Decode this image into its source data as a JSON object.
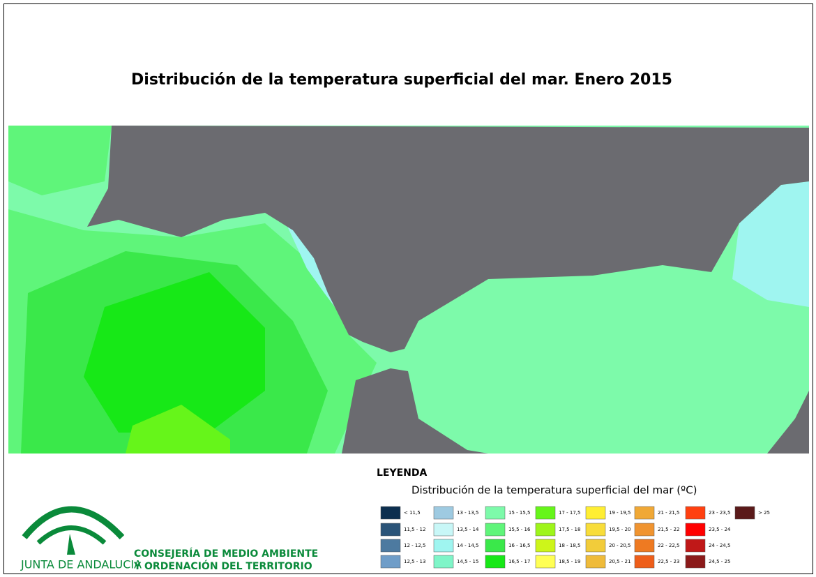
{
  "title": "Distribución de la temperatura superficial del mar. Enero 2015",
  "legend": {
    "heading": "LEYENDA",
    "subtitle": "Distribución de la temperatura superficial del mar  (ºC)",
    "items": [
      {
        "label": "< 11,5",
        "color": "#0d2f4f"
      },
      {
        "label": "11,5 - 12",
        "color": "#2b5478"
      },
      {
        "label": "12 - 12,5",
        "color": "#4d7aa0"
      },
      {
        "label": "12,5 - 13",
        "color": "#6f9dc8"
      },
      {
        "label": "13 - 13,5",
        "color": "#9ecae1"
      },
      {
        "label": "13,5 - 14",
        "color": "#c8f7f7"
      },
      {
        "label": "14 - 14,5",
        "color": "#9ff5f0"
      },
      {
        "label": "14,5 - 15",
        "color": "#7ff5c8"
      },
      {
        "label": "15 - 15,5",
        "color": "#7dfaaa"
      },
      {
        "label": "15,5 - 16",
        "color": "#5ff57a"
      },
      {
        "label": "16 - 16,5",
        "color": "#3ae84a"
      },
      {
        "label": "16,5 - 17",
        "color": "#17e817"
      },
      {
        "label": "17 - 17,5",
        "color": "#66f51a"
      },
      {
        "label": "17,5 - 18",
        "color": "#9ef51a"
      },
      {
        "label": "18 - 18,5",
        "color": "#cdf51a"
      },
      {
        "label": "18,5 - 19",
        "color": "#ffff55"
      },
      {
        "label": "19 - 19,5",
        "color": "#ffee33"
      },
      {
        "label": "19,5 - 20",
        "color": "#f8dd3a"
      },
      {
        "label": "20 - 20,5",
        "color": "#f2cc3a"
      },
      {
        "label": "20,5 - 21",
        "color": "#efbb3a"
      },
      {
        "label": "21 - 21,5",
        "color": "#f0a836"
      },
      {
        "label": "21,5 - 22",
        "color": "#f09430"
      },
      {
        "label": "22 - 22,5",
        "color": "#ee7a22"
      },
      {
        "label": "22,5 - 23",
        "color": "#ee5e1a"
      },
      {
        "label": "23 - 23,5",
        "color": "#ff4010"
      },
      {
        "label": "23,5 - 24",
        "color": "#ff0000"
      },
      {
        "label": "24 - 24,5",
        "color": "#c01818"
      },
      {
        "label": "24,5 - 25",
        "color": "#8b1a1a"
      },
      {
        "label": "> 25",
        "color": "#5a1a1a"
      }
    ]
  },
  "logo": {
    "name": "JUNTA DE ANDALUCIA",
    "line1": "CONSEJERÍA DE MEDIO AMBIENTE",
    "line2": "Y ORDENACIÓN DEL TERRITORIO"
  }
}
